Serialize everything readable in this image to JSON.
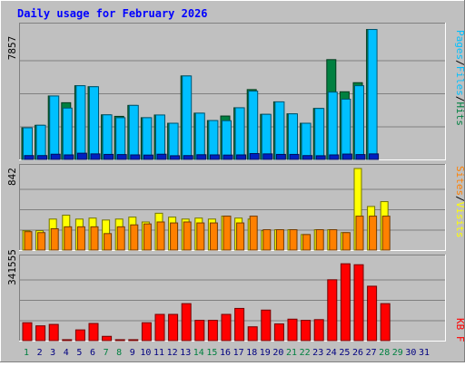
{
  "chart_data": [
    {
      "type": "bar",
      "title": "Daily usage for February 2026",
      "ylabel_parts": [
        "Pages",
        "Files",
        "Hits"
      ],
      "ylabel_sep": "/",
      "ymax_label": "7857",
      "ylim": [
        0,
        7857
      ],
      "categories": [
        "1",
        "2",
        "3",
        "4",
        "5",
        "6",
        "7",
        "8",
        "9",
        "10",
        "11",
        "12",
        "13",
        "14",
        "15",
        "16",
        "17",
        "18",
        "19",
        "20",
        "21",
        "22",
        "23",
        "24",
        "25",
        "26",
        "27",
        "28",
        "29",
        "30",
        "31"
      ],
      "series": [
        {
          "name": "Hits",
          "color": "#008040",
          "values": [
            1880,
            2030,
            3770,
            3370,
            4380,
            4320,
            2650,
            2560,
            3210,
            2480,
            2640,
            2150,
            4960,
            2750,
            2310,
            2580,
            3070,
            4150,
            2680,
            3420,
            2710,
            2150,
            3030,
            5930,
            4020,
            4560,
            7720,
            0,
            0,
            0,
            0
          ]
        },
        {
          "name": "Files",
          "color": "#00c0ff",
          "values": [
            1880,
            2030,
            3770,
            3050,
            4380,
            4320,
            2650,
            2480,
            3210,
            2480,
            2640,
            2150,
            4960,
            2750,
            2310,
            2300,
            3070,
            4060,
            2680,
            3420,
            2710,
            2150,
            3030,
            4000,
            3580,
            4380,
            7720,
            0,
            0,
            0,
            0
          ]
        },
        {
          "name": "Pages",
          "color": "#0020c0",
          "values": [
            230,
            230,
            310,
            270,
            370,
            330,
            300,
            290,
            270,
            260,
            310,
            220,
            230,
            280,
            270,
            260,
            270,
            350,
            330,
            300,
            300,
            230,
            220,
            270,
            320,
            290,
            330,
            0,
            0,
            0,
            0
          ]
        }
      ]
    },
    {
      "type": "bar",
      "ylabel_parts": [
        "Sites",
        "Visits"
      ],
      "ylabel_sep": "/",
      "ymax_label": "842",
      "ylim": [
        0,
        842
      ],
      "series": [
        {
          "name": "Visits",
          "color": "#ffff00",
          "values": [
            200,
            200,
            320,
            360,
            320,
            330,
            310,
            320,
            340,
            290,
            380,
            340,
            320,
            330,
            320,
            350,
            330,
            320,
            200,
            210,
            210,
            160,
            210,
            210,
            180,
            842,
            450,
            500,
            0,
            0,
            0
          ]
        },
        {
          "name": "Sites",
          "color": "#ff8000",
          "values": [
            190,
            180,
            220,
            240,
            240,
            240,
            170,
            240,
            260,
            270,
            290,
            280,
            290,
            280,
            280,
            350,
            280,
            350,
            210,
            210,
            210,
            160,
            210,
            210,
            180,
            350,
            350,
            350,
            0,
            0,
            0
          ]
        }
      ]
    },
    {
      "type": "bar",
      "ylabel_parts": [
        "KB F"
      ],
      "ymax_label": "341555",
      "ylim": [
        0,
        341555
      ],
      "series": [
        {
          "name": "KB F",
          "color": "#ff0000",
          "values": [
            75000,
            62000,
            68000,
            4000,
            45000,
            72000,
            18000,
            4000,
            4000,
            75000,
            110000,
            110000,
            155000,
            85000,
            85000,
            110000,
            135000,
            58000,
            128000,
            70000,
            90000,
            85000,
            88000,
            255000,
            322000,
            318000,
            228000,
            155000,
            0,
            0,
            0
          ]
        }
      ]
    }
  ],
  "day_label_colors": [
    "#008040",
    "#000080",
    "#000080",
    "#000080",
    "#000080",
    "#000080",
    "#008040",
    "#008040",
    "#000080",
    "#000080",
    "#000080",
    "#000080",
    "#000080",
    "#008040",
    "#008040",
    "#000080",
    "#000080",
    "#000080",
    "#000080",
    "#000080",
    "#008040",
    "#008040",
    "#000080",
    "#000080",
    "#000080",
    "#000080",
    "#000080",
    "#008040",
    "#008040",
    "#000080",
    "#000080"
  ]
}
